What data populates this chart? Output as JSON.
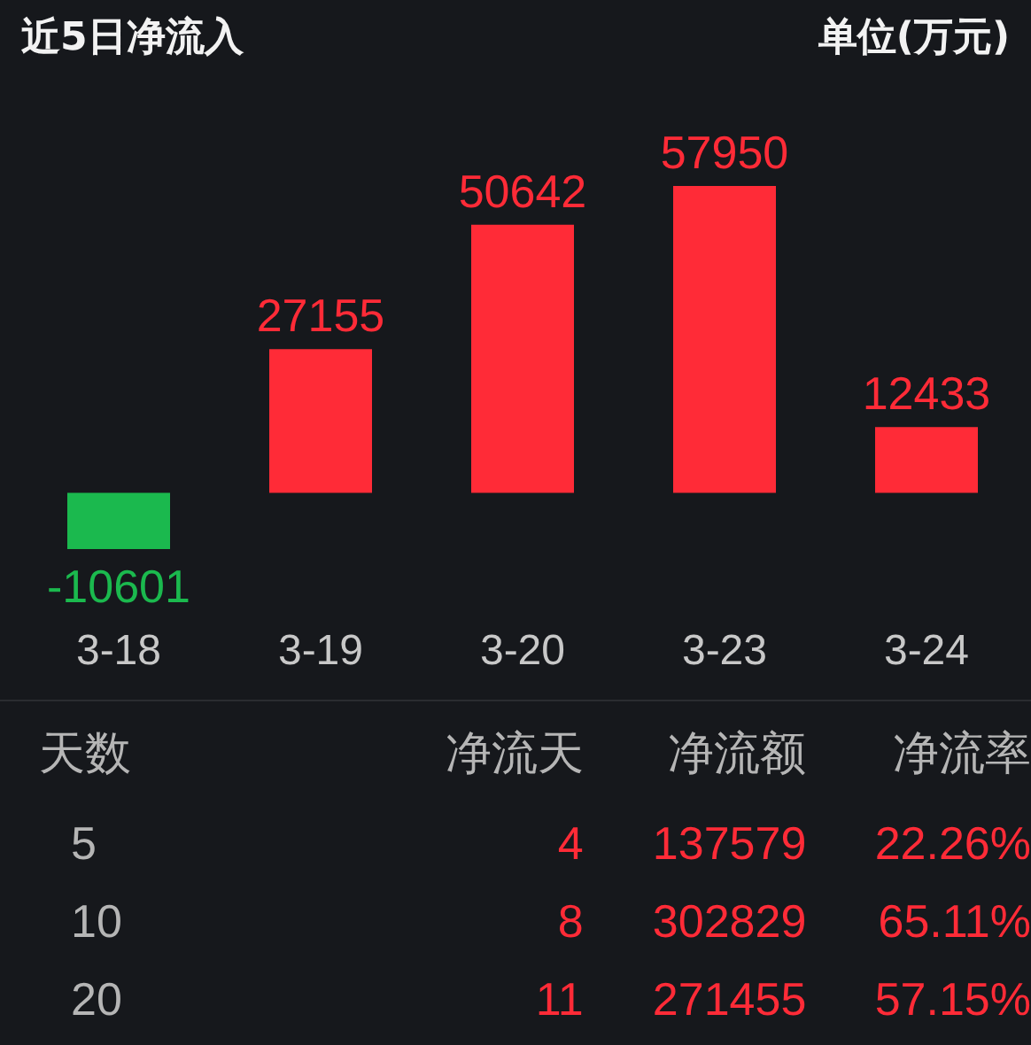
{
  "chart_data": [
    {
      "type": "bar",
      "title": "近5日净流入",
      "subtitle": "单位(万元)",
      "categories": [
        "3-18",
        "3-19",
        "3-20",
        "3-23",
        "3-24"
      ],
      "values": [
        -10601,
        27155,
        50642,
        57950,
        12433
      ],
      "colors": [
        "#1bb94e",
        "#ff2b37",
        "#ff2b37",
        "#ff2b37",
        "#ff2b37"
      ],
      "data_labels": true,
      "tick_labels": "x",
      "grid": false,
      "legend": false
    },
    {
      "type": "other",
      "annotations": [
        "天数",
        "净流天",
        "净流额",
        "净流率",
        "5",
        "4",
        "137579",
        "22.26%",
        "10",
        "8",
        "302829",
        "65.11%",
        "20",
        "11",
        "271455",
        "57.15%"
      ]
    }
  ]
}
